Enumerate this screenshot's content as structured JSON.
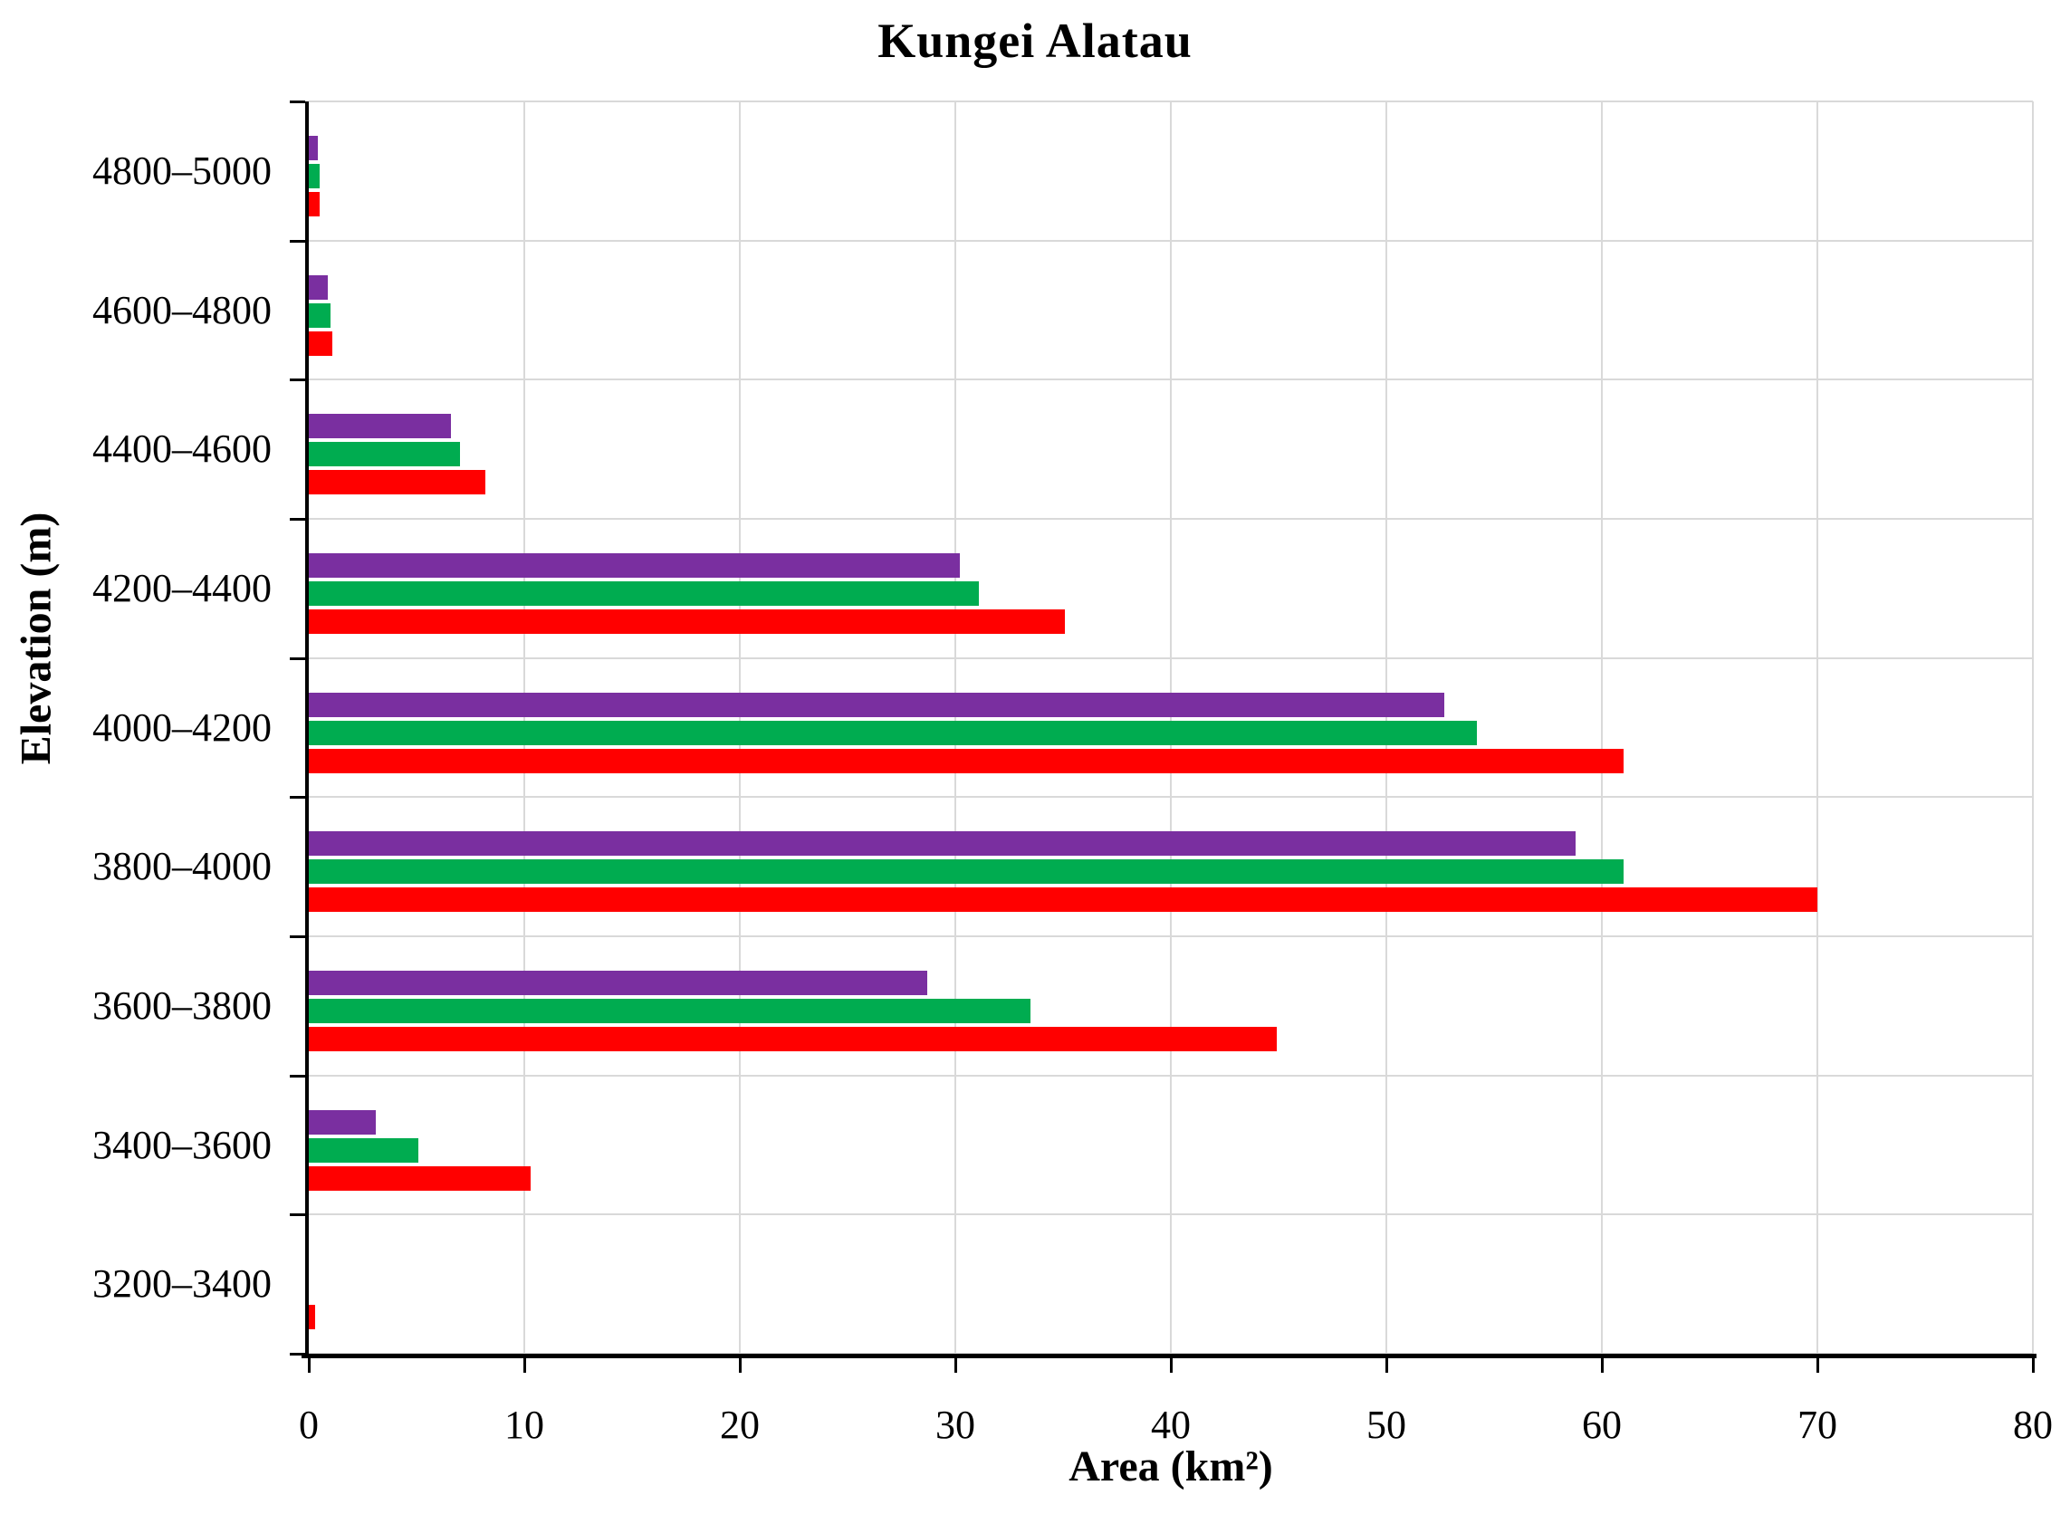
{
  "title": "Kungei Alatau",
  "chart_data": {
    "type": "bar",
    "orientation": "horizontal",
    "title": "Kungei Alatau",
    "xlabel": "Area (km²)",
    "ylabel": "Elevation (m)",
    "xlim": [
      0,
      80
    ],
    "x_ticks": [
      0,
      10,
      20,
      30,
      40,
      50,
      60,
      70,
      80
    ],
    "grid": true,
    "legend": "none",
    "categories": [
      "4800–5000",
      "4600–4800",
      "4400–4600",
      "4200–4400",
      "4000–4200",
      "3800–4000",
      "3600–3800",
      "3400–3600",
      "3200–3400"
    ],
    "series": [
      {
        "name": "purple-series",
        "color": "#7A2FA0",
        "values": [
          0.4,
          0.9,
          6.6,
          30.2,
          52.7,
          58.8,
          28.7,
          3.1,
          0
        ]
      },
      {
        "name": "green-series",
        "color": "#00AC50",
        "values": [
          0.5,
          1.0,
          7.0,
          31.1,
          54.2,
          61.0,
          33.5,
          5.1,
          0
        ]
      },
      {
        "name": "red-series",
        "color": "#FF0000",
        "values": [
          0.5,
          1.1,
          8.2,
          35.1,
          61.0,
          70.0,
          44.9,
          10.3,
          0.3
        ]
      }
    ],
    "gridline_color": "#D9D9D9",
    "axis_color": "#000000",
    "background_color": "#FFFFFF"
  }
}
